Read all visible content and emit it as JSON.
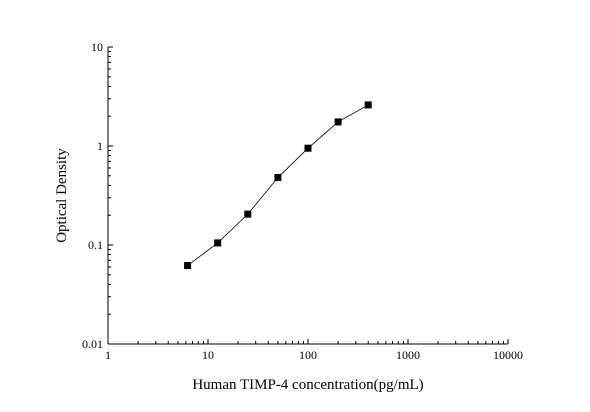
{
  "chart_data": {
    "type": "scatter",
    "title": "",
    "xlabel": "Human TIMP-4 concentration(pg/mL)",
    "ylabel": "Optical Density",
    "xscale": "log",
    "yscale": "log",
    "xlim": [
      1,
      10000
    ],
    "ylim": [
      0.01,
      10
    ],
    "x_ticks": [
      1,
      10,
      100,
      1000,
      10000
    ],
    "x_tick_labels": [
      "1",
      "10",
      "100",
      "1000",
      "10000"
    ],
    "y_ticks": [
      0.01,
      0.1,
      1,
      10
    ],
    "y_tick_labels": [
      "0.01",
      "0.1",
      "1",
      "10"
    ],
    "grid": false,
    "legend": "none",
    "marker": "square",
    "connected": true,
    "series": [
      {
        "x": [
          6.25,
          12.5,
          25,
          50,
          100,
          200,
          400
        ],
        "y": [
          0.062,
          0.105,
          0.205,
          0.48,
          0.95,
          1.75,
          2.6
        ]
      }
    ]
  }
}
